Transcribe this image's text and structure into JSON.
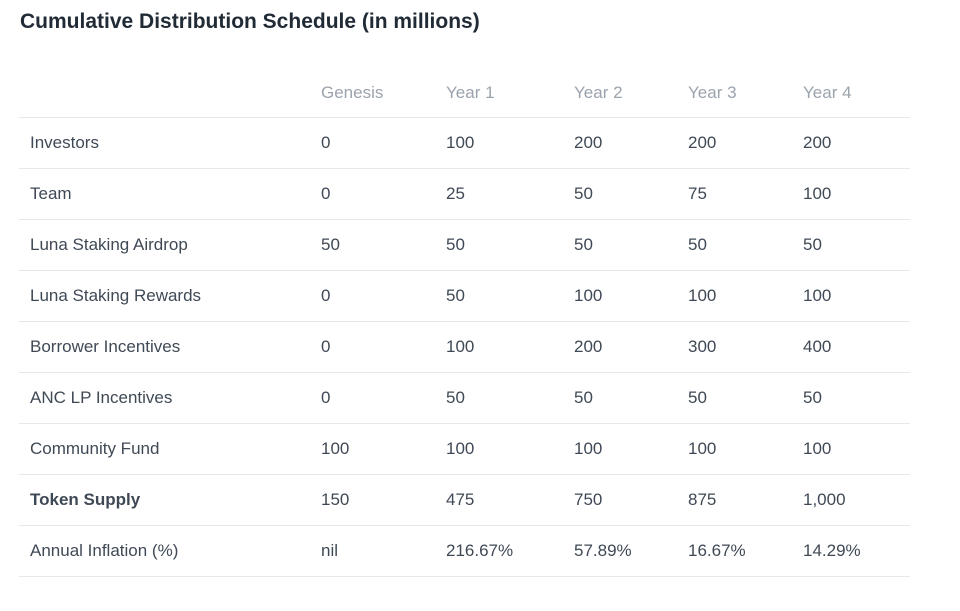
{
  "title": "Cumulative Distribution Schedule (in millions)",
  "colors": {
    "background": "#ffffff",
    "title_text": "#212b36",
    "body_text": "#3f4955",
    "header_text": "#9ba3ad",
    "divider": "#e6e8eb"
  },
  "table": {
    "column_headers": [
      "Genesis",
      "Year 1",
      "Year 2",
      "Year 3",
      "Year 4"
    ],
    "rows": [
      {
        "label": "Investors",
        "values": [
          "0",
          "100",
          "200",
          "200",
          "200"
        ]
      },
      {
        "label": "Team",
        "values": [
          "0",
          "25",
          "50",
          "75",
          "100"
        ]
      },
      {
        "label": "Luna Staking Airdrop",
        "values": [
          "50",
          "50",
          "50",
          "50",
          "50"
        ]
      },
      {
        "label": "Luna Staking Rewards",
        "values": [
          "0",
          "50",
          "100",
          "100",
          "100"
        ]
      },
      {
        "label": "Borrower Incentives",
        "values": [
          "0",
          "100",
          "200",
          "300",
          "400"
        ]
      },
      {
        "label": "ANC LP Incentives",
        "values": [
          "0",
          "50",
          "50",
          "50",
          "50"
        ]
      },
      {
        "label": "Community Fund",
        "values": [
          "100",
          "100",
          "100",
          "100",
          "100"
        ]
      },
      {
        "label": "Token Supply",
        "values": [
          "150",
          "475",
          "750",
          "875",
          "1,000"
        ]
      },
      {
        "label": "Annual Inflation (%)",
        "values": [
          "nil",
          "216.67%",
          "57.89%",
          "16.67%",
          "14.29%"
        ]
      }
    ]
  },
  "chart_data": {
    "type": "table",
    "title": "Cumulative Distribution Schedule (in millions)",
    "categories": [
      "Genesis",
      "Year 1",
      "Year 2",
      "Year 3",
      "Year 4"
    ],
    "series": [
      {
        "name": "Investors",
        "values": [
          0,
          100,
          200,
          200,
          200
        ]
      },
      {
        "name": "Team",
        "values": [
          0,
          25,
          50,
          75,
          100
        ]
      },
      {
        "name": "Luna Staking Airdrop",
        "values": [
          50,
          50,
          50,
          50,
          50
        ]
      },
      {
        "name": "Luna Staking Rewards",
        "values": [
          0,
          50,
          100,
          100,
          100
        ]
      },
      {
        "name": "Borrower Incentives",
        "values": [
          0,
          100,
          200,
          300,
          400
        ]
      },
      {
        "name": "ANC LP Incentives",
        "values": [
          0,
          50,
          50,
          50,
          50
        ]
      },
      {
        "name": "Community Fund",
        "values": [
          100,
          100,
          100,
          100,
          100
        ]
      },
      {
        "name": "Token Supply",
        "values": [
          150,
          475,
          750,
          875,
          1000
        ]
      },
      {
        "name": "Annual Inflation (%)",
        "values": [
          "nil",
          "216.67%",
          "57.89%",
          "16.67%",
          "14.29%"
        ]
      }
    ]
  }
}
